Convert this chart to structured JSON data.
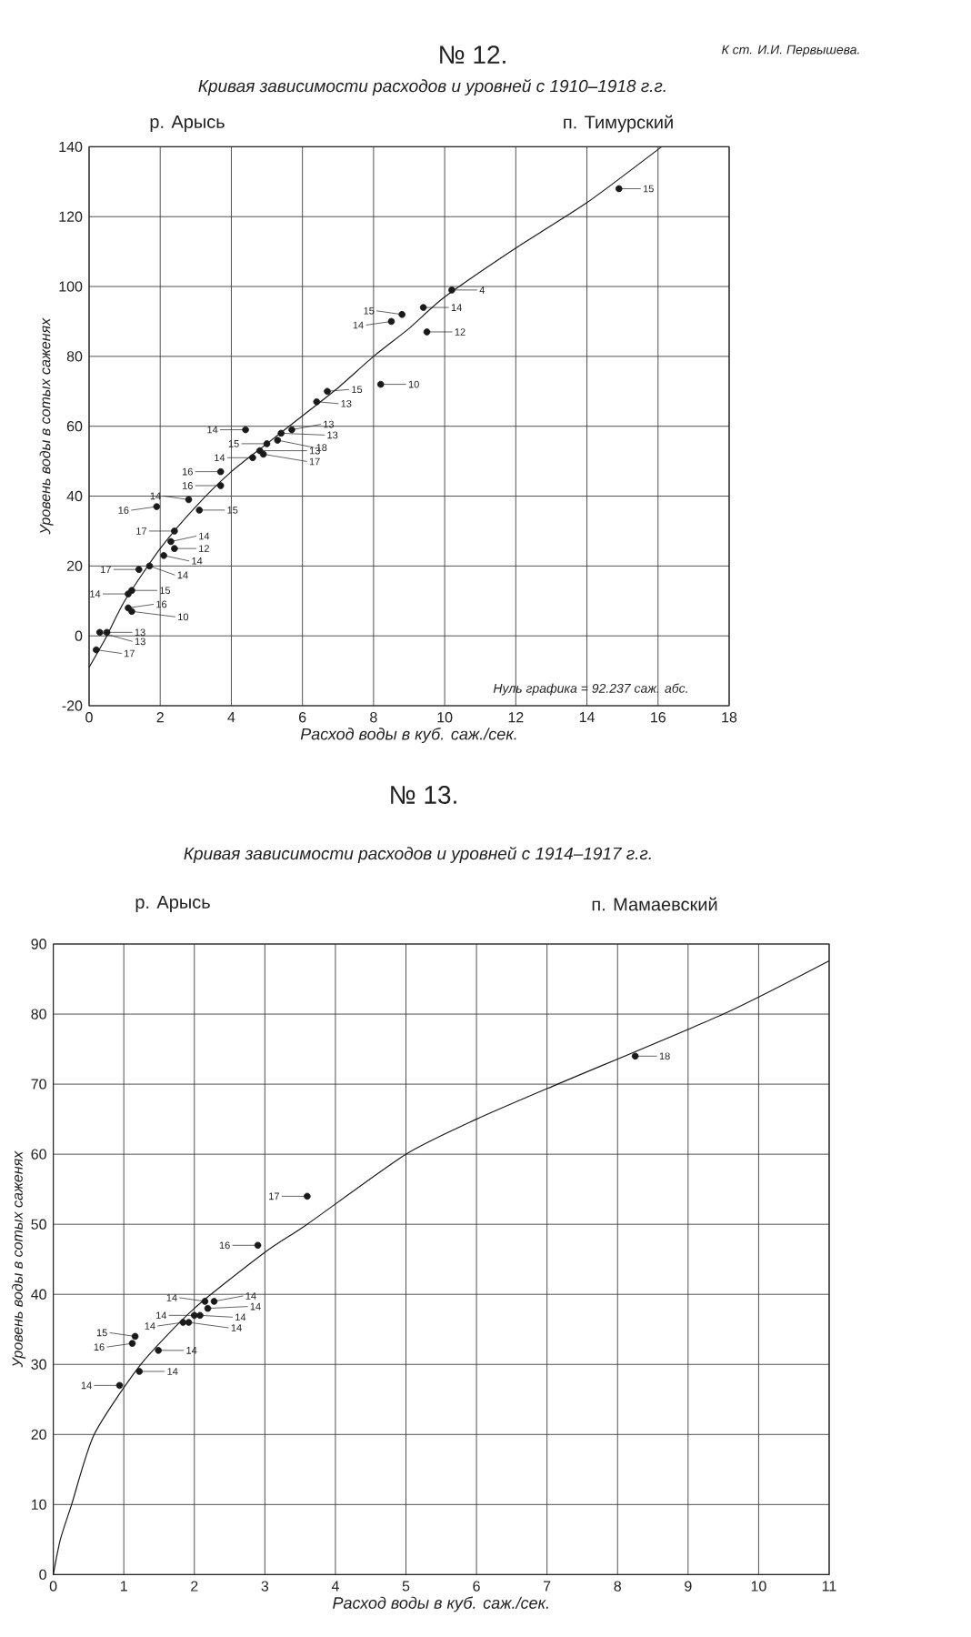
{
  "chart_data": [
    {
      "type": "scatter",
      "title": "№ 12.",
      "subtitle": "Кривая зависимости расходов и уровней с 1910–1918 г.г.",
      "xlabel": "Расход воды в куб. саж./сек.",
      "ylabel": "Уровень воды в сотых саженях",
      "annotations": [
        "К ст. И.И. Первышева.",
        "р. Арысь",
        "п. Тимурский",
        "Нуль графика = 92.237 саж. абс.",
        {
          "text": "4",
          "x": 10.2,
          "y": 99
        },
        {
          "text": "14",
          "x": 9.4,
          "y": 94
        },
        {
          "text": "15",
          "x": 8.8,
          "y": 92
        },
        {
          "text": "14",
          "x": 8.5,
          "y": 90
        },
        {
          "text": "12",
          "x": 9.5,
          "y": 87
        },
        {
          "text": "10",
          "x": 8.2,
          "y": 72
        },
        {
          "text": "15",
          "x": 6.7,
          "y": 70
        },
        {
          "text": "13",
          "x": 6.4,
          "y": 67
        },
        {
          "text": "14",
          "x": 4.4,
          "y": 59
        },
        {
          "text": "13",
          "x": 5.7,
          "y": 59
        },
        {
          "text": "13",
          "x": 5.4,
          "y": 58
        },
        {
          "text": "18",
          "x": 5.3,
          "y": 56
        },
        {
          "text": "15",
          "x": 5.0,
          "y": 55
        },
        {
          "text": "13",
          "x": 4.8,
          "y": 53
        },
        {
          "text": "17",
          "x": 4.9,
          "y": 52
        },
        {
          "text": "14",
          "x": 4.6,
          "y": 51
        },
        {
          "text": "16",
          "x": 3.7,
          "y": 47
        },
        {
          "text": "16",
          "x": 3.7,
          "y": 43
        },
        {
          "text": "14",
          "x": 2.8,
          "y": 39
        },
        {
          "text": "16",
          "x": 1.9,
          "y": 37
        },
        {
          "text": "15",
          "x": 3.1,
          "y": 36
        },
        {
          "text": "17",
          "x": 2.4,
          "y": 30
        },
        {
          "text": "14",
          "x": 2.3,
          "y": 27
        },
        {
          "text": "12",
          "x": 2.4,
          "y": 25
        },
        {
          "text": "14",
          "x": 2.1,
          "y": 23
        },
        {
          "text": "14",
          "x": 1.7,
          "y": 20
        },
        {
          "text": "17",
          "x": 1.4,
          "y": 19
        },
        {
          "text": "15",
          "x": 1.2,
          "y": 13
        },
        {
          "text": "14",
          "x": 1.1,
          "y": 12
        },
        {
          "text": "16",
          "x": 1.1,
          "y": 8
        },
        {
          "text": "10",
          "x": 1.2,
          "y": 7
        },
        {
          "text": "13",
          "x": 0.5,
          "y": 1
        },
        {
          "text": "13",
          "x": 0.3,
          "y": 1
        },
        {
          "text": "17",
          "x": 0.2,
          "y": -4
        },
        {
          "text": "15",
          "x": 14.9,
          "y": 128
        }
      ],
      "xlim": [
        0,
        18
      ],
      "ylim": [
        -20,
        140
      ],
      "xticks": [
        0,
        2,
        4,
        6,
        8,
        10,
        12,
        14,
        16,
        18
      ],
      "yticks": [
        -20,
        0,
        20,
        40,
        60,
        80,
        100,
        120,
        140
      ],
      "grid": true,
      "marker": "circle",
      "series": [
        {
          "color": "#1a1a1a",
          "x": [
            10.2,
            9.4,
            8.8,
            8.5,
            9.5,
            8.2,
            6.7,
            6.4,
            4.4,
            5.7,
            5.4,
            5.3,
            5.0,
            4.8,
            4.9,
            4.6,
            3.7,
            3.7,
            2.8,
            1.9,
            3.1,
            2.4,
            2.3,
            2.4,
            2.1,
            1.7,
            1.4,
            1.2,
            1.1,
            1.1,
            1.2,
            0.5,
            0.3,
            0.2,
            14.9
          ],
          "values": [
            99,
            94,
            92,
            90,
            87,
            72,
            70,
            67,
            59,
            59,
            58,
            56,
            55,
            53,
            52,
            51,
            47,
            43,
            39,
            37,
            36,
            30,
            27,
            25,
            23,
            20,
            19,
            13,
            12,
            8,
            7,
            1,
            1,
            -4,
            128
          ]
        },
        {
          "type": "line",
          "color": "#1a1a1a",
          "marker": "none",
          "x": [
            0,
            0.5,
            1,
            2,
            3,
            4,
            5,
            6,
            7,
            8,
            9,
            10,
            12,
            14,
            16.1
          ],
          "values": [
            -9,
            0,
            10,
            25,
            37,
            47,
            55,
            63,
            71,
            80,
            88,
            97,
            111,
            124,
            140
          ]
        }
      ]
    },
    {
      "type": "scatter",
      "title": "№ 13.",
      "subtitle": "Кривая зависимости расходов и уровней с 1914–1917 г.г.",
      "xlabel": "Расход воды в куб. саж./сек.",
      "ylabel": "Уровень воды в сотых саженях",
      "annotations": [
        "р. Арысь",
        "п. Мамаевский",
        {
          "text": "17",
          "x": 3.6,
          "y": 54
        },
        {
          "text": "16",
          "x": 2.9,
          "y": 47
        },
        {
          "text": "14",
          "x": 2.15,
          "y": 39
        },
        {
          "text": "14",
          "x": 2.28,
          "y": 39
        },
        {
          "text": "14",
          "x": 2.19,
          "y": 38
        },
        {
          "text": "14",
          "x": 2.08,
          "y": 37
        },
        {
          "text": "14",
          "x": 2.0,
          "y": 37
        },
        {
          "text": "14",
          "x": 1.84,
          "y": 36
        },
        {
          "text": "14",
          "x": 1.92,
          "y": 36
        },
        {
          "text": "15",
          "x": 1.16,
          "y": 34
        },
        {
          "text": "16",
          "x": 1.12,
          "y": 33
        },
        {
          "text": "14",
          "x": 1.49,
          "y": 32
        },
        {
          "text": "14",
          "x": 1.22,
          "y": 29
        },
        {
          "text": "14",
          "x": 0.94,
          "y": 27
        },
        {
          "text": "18",
          "x": 8.25,
          "y": 74
        }
      ],
      "xlim": [
        0,
        11
      ],
      "ylim": [
        0,
        90
      ],
      "xticks": [
        0,
        1,
        2,
        3,
        4,
        5,
        6,
        7,
        8,
        9,
        10,
        11
      ],
      "yticks": [
        0,
        10,
        20,
        30,
        40,
        50,
        60,
        70,
        80,
        90
      ],
      "grid": true,
      "marker": "circle",
      "series": [
        {
          "color": "#1a1a1a",
          "x": [
            3.6,
            2.9,
            2.15,
            2.28,
            2.19,
            2.08,
            2.0,
            1.84,
            1.92,
            1.16,
            1.12,
            1.49,
            1.22,
            0.94,
            8.25
          ],
          "values": [
            54,
            47,
            39,
            39,
            38,
            37,
            37,
            36,
            36,
            34,
            33,
            32,
            29,
            27,
            74
          ]
        },
        {
          "type": "line",
          "color": "#1a1a1a",
          "marker": "none",
          "x": [
            0,
            0.1,
            0.26,
            0.58,
            1.24,
            2.0,
            3.0,
            3.6,
            5.0,
            6.0,
            7.15,
            9.5,
            11
          ],
          "values": [
            0,
            5,
            10,
            20,
            30,
            38,
            46,
            50,
            60,
            65,
            70,
            80,
            87.6
          ]
        }
      ]
    }
  ]
}
